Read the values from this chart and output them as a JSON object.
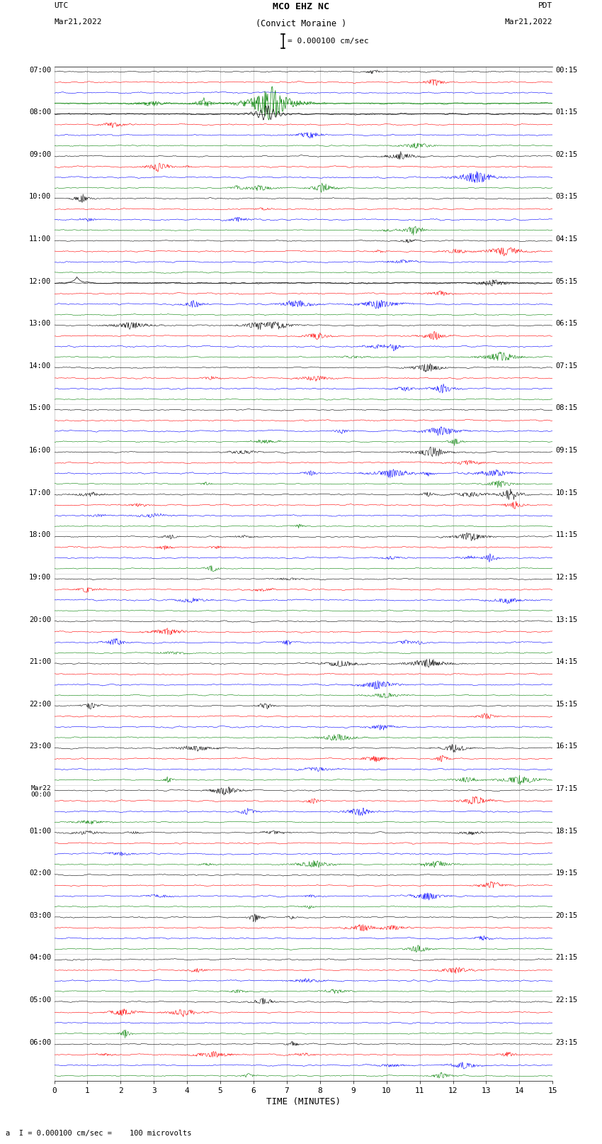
{
  "title_line1": "MCO EHZ NC",
  "title_line2": "(Convict Moraine )",
  "scale_label": "= 0.000100 cm/sec",
  "utc_label": "UTC",
  "utc_date": "Mar21,2022",
  "pdt_label": "PDT",
  "pdt_date": "Mar21,2022",
  "xlabel": "TIME (MINUTES)",
  "footer": "a  I = 0.000100 cm/sec =    100 microvolts",
  "xlim": [
    0,
    15
  ],
  "xticks": [
    0,
    1,
    2,
    3,
    4,
    5,
    6,
    7,
    8,
    9,
    10,
    11,
    12,
    13,
    14,
    15
  ],
  "trace_colors": [
    "black",
    "red",
    "blue",
    "green"
  ],
  "bg_color": "white",
  "grid_color": "#bbbbbb",
  "left_labels_utc": [
    "07:00",
    "08:00",
    "09:00",
    "10:00",
    "11:00",
    "12:00",
    "13:00",
    "14:00",
    "15:00",
    "16:00",
    "17:00",
    "18:00",
    "19:00",
    "20:00",
    "21:00",
    "22:00",
    "23:00",
    "Mar22\n00:00",
    "01:00",
    "02:00",
    "03:00",
    "04:00",
    "05:00",
    "06:00"
  ],
  "right_labels_pdt": [
    "00:15",
    "01:15",
    "02:15",
    "03:15",
    "04:15",
    "05:15",
    "06:15",
    "07:15",
    "08:15",
    "09:15",
    "10:15",
    "11:15",
    "12:15",
    "13:15",
    "14:15",
    "15:15",
    "16:15",
    "17:15",
    "18:15",
    "19:15",
    "20:15",
    "21:15",
    "22:15",
    "23:15"
  ],
  "n_rows": 24,
  "traces_per_row": 4,
  "seed": 42
}
